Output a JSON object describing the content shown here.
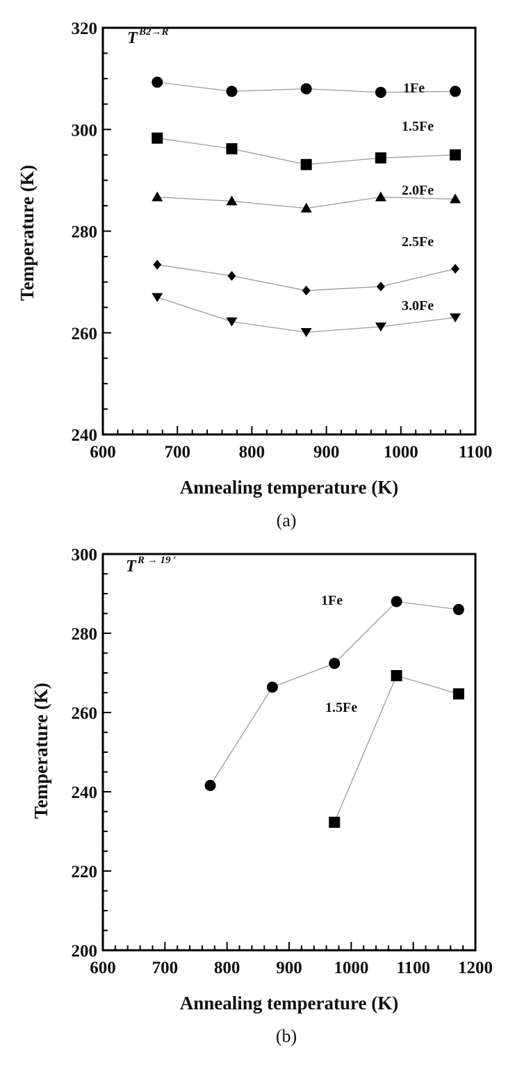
{
  "chart_data": [
    {
      "type": "line",
      "panel": "(a)",
      "annotation": {
        "base": "T",
        "sup": "B2→R"
      },
      "xlabel": "Annealing temperature (K)",
      "ylabel": "Temperature (K)",
      "xlim": [
        600,
        1100
      ],
      "ylim": [
        240,
        320
      ],
      "xticks": [
        600,
        700,
        800,
        900,
        1000,
        1100
      ],
      "yticks": [
        240,
        260,
        280,
        300,
        320
      ],
      "grid": false,
      "x": [
        673,
        773,
        873,
        973,
        1073
      ],
      "series": [
        {
          "name": "1Fe",
          "marker": "circle",
          "values": [
            309.3,
            307.5,
            308.0,
            307.3,
            307.5
          ]
        },
        {
          "name": "1.5Fe",
          "marker": "square",
          "values": [
            298.3,
            296.2,
            293.1,
            294.4,
            295.0
          ]
        },
        {
          "name": "2.0Fe",
          "marker": "triangle-up",
          "values": [
            286.7,
            285.9,
            284.5,
            286.7,
            286.3
          ]
        },
        {
          "name": "2.5Fe",
          "marker": "diamond",
          "values": [
            273.4,
            271.2,
            268.3,
            269.1,
            272.6
          ]
        },
        {
          "name": "3.0Fe",
          "marker": "triangle-down",
          "values": [
            267.0,
            262.2,
            260.1,
            261.2,
            263.0
          ]
        }
      ]
    },
    {
      "type": "line",
      "panel": "(b)",
      "annotation": {
        "base": "T",
        "sup": "R → 19 ′"
      },
      "xlabel": "Annealing temperature (K)",
      "ylabel": "Temperature (K)",
      "xlim": [
        600,
        1200
      ],
      "ylim": [
        200,
        300
      ],
      "xticks": [
        600,
        700,
        800,
        900,
        1000,
        1100,
        1200
      ],
      "yticks": [
        200,
        220,
        240,
        260,
        280,
        300
      ],
      "grid": false,
      "series": [
        {
          "name": "1Fe",
          "marker": "circle",
          "x": [
            773,
            873,
            973,
            1073,
            1173
          ],
          "values": [
            241.6,
            266.4,
            272.4,
            288.0,
            286.0
          ]
        },
        {
          "name": "1.5Fe",
          "marker": "square",
          "x": [
            973,
            1073,
            1173
          ],
          "values": [
            232.3,
            269.3,
            264.7
          ]
        }
      ]
    }
  ],
  "colors": {
    "line": "#9a9a9a",
    "marker": "#000000",
    "axis": "#000000"
  }
}
